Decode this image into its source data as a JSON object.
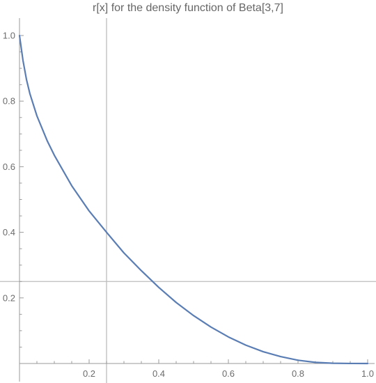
{
  "chart_data": {
    "type": "line",
    "title": "r[x] for the density function of Beta[3,7]",
    "xlabel": "",
    "ylabel": "",
    "xlim": [
      0,
      1
    ],
    "ylim": [
      0,
      1
    ],
    "x_ticks": [
      0.2,
      0.4,
      0.6,
      0.8,
      1.0
    ],
    "x_tick_labels": [
      "0.2",
      "0.4",
      "0.6",
      "0.8",
      "1.0"
    ],
    "y_ticks": [
      0.2,
      0.4,
      0.6,
      0.8,
      1.0
    ],
    "y_tick_labels": [
      "0.2",
      "0.4",
      "0.6",
      "0.8",
      "1.0"
    ],
    "grid": false,
    "series": [
      {
        "color": "#5a7db4",
        "x": [
          0,
          0.01,
          0.02,
          0.03,
          0.05,
          0.08,
          0.1,
          0.15,
          0.2,
          0.25,
          0.3,
          0.35,
          0.4,
          0.45,
          0.5,
          0.55,
          0.6,
          0.65,
          0.7,
          0.75,
          0.8,
          0.85,
          0.9,
          0.95,
          1.0
        ],
        "y": [
          1.0,
          0.924,
          0.866,
          0.822,
          0.755,
          0.678,
          0.635,
          0.542,
          0.465,
          0.4,
          0.337,
          0.283,
          0.232,
          0.186,
          0.146,
          0.111,
          0.081,
          0.056,
          0.036,
          0.021,
          0.01,
          0.0035,
          0.0008,
          0.0001,
          0.0
        ]
      }
    ],
    "reference_lines": {
      "vertical_x": 0.25,
      "horizontal_y": 0.25,
      "color": "#bdbdbd"
    }
  }
}
